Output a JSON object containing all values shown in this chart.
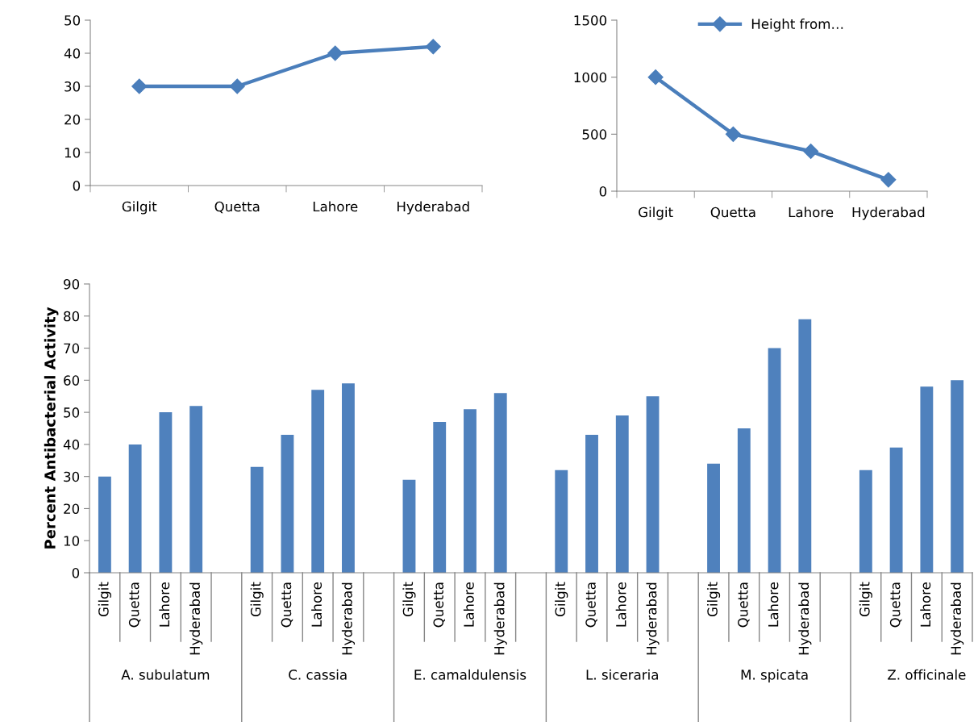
{
  "chart_data": [
    {
      "type": "line",
      "categories": [
        "Gilgit",
        "Quetta",
        "Lahore",
        "Hyderabad"
      ],
      "marker": "diamond",
      "ylim": [
        0,
        50
      ],
      "yticks": [
        0,
        10,
        20,
        30,
        40,
        50
      ],
      "series": [
        {
          "color": "#4a7ebb",
          "values": [
            30,
            30,
            40,
            42
          ]
        }
      ]
    },
    {
      "type": "line",
      "categories": [
        "Gilgit",
        "Quetta",
        "Lahore",
        "Hyderabad"
      ],
      "marker": "diamond",
      "ylim": [
        0,
        1500
      ],
      "yticks": [
        0,
        500,
        1000,
        1500
      ],
      "legend": "top",
      "series": [
        {
          "name": "Height from…",
          "color": "#4a7ebb",
          "values": [
            1000,
            500,
            350,
            100
          ]
        }
      ]
    },
    {
      "type": "bar",
      "ylabel": "Percent Antibacterial Activity",
      "ylim": [
        0,
        90
      ],
      "yticks": [
        0,
        10,
        20,
        30,
        40,
        50,
        60,
        70,
        80,
        90
      ],
      "categories": [
        "Gilgit",
        "Quetta",
        "Lahore",
        "Hyderabad",
        null,
        "Gilgit",
        "Quetta",
        "Lahore",
        "Hyderabad",
        null,
        "Gilgit",
        "Quetta",
        "Lahore",
        "Hyderabad",
        null,
        "Gilgit",
        "Quetta",
        "Lahore",
        "Hyderabad",
        null,
        "Gilgit",
        "Quetta",
        "Lahore",
        "Hyderabad",
        null,
        "Gilgit",
        "Quetta",
        "Lahore",
        "Hyderabad"
      ],
      "annotations": [
        "A. subulatum",
        "C. cassia",
        "E. camaldulensis",
        "L. siceraria",
        "M. spicata",
        "Z. officinale"
      ],
      "series": [
        {
          "color": "#4f81bd",
          "values": [
            30,
            40,
            50,
            52,
            null,
            33,
            43,
            57,
            59,
            null,
            29,
            47,
            51,
            56,
            null,
            32,
            43,
            49,
            55,
            null,
            34,
            45,
            70,
            79,
            null,
            32,
            39,
            58,
            60
          ]
        }
      ]
    }
  ]
}
